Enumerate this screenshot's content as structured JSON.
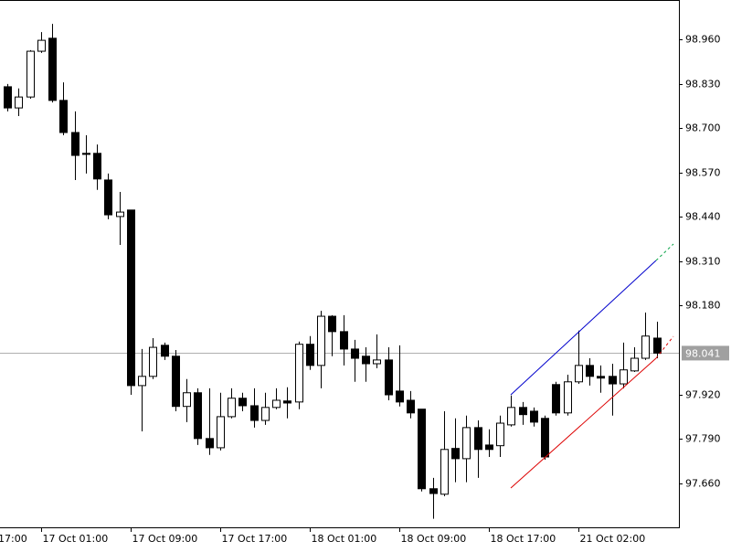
{
  "chart_data": {
    "type": "candlestick",
    "categories": [
      null,
      null,
      null,
      "17 Oct 01:00",
      null,
      null,
      null,
      null,
      null,
      null,
      null,
      "17 Oct 09:00",
      null,
      null,
      null,
      null,
      null,
      null,
      null,
      "17 Oct 17:00",
      null,
      null,
      null,
      null,
      null,
      null,
      null,
      "18 Oct 01:00",
      null,
      null,
      null,
      null,
      null,
      null,
      null,
      "18 Oct 09:00",
      null,
      null,
      null,
      null,
      null,
      null,
      null,
      "18 Oct 17:00",
      null,
      null,
      null,
      null,
      null,
      null,
      null,
      "21 Oct 02:00",
      null,
      null,
      null,
      null,
      null,
      null,
      null
    ],
    "x_label_clipped": "17:00",
    "open": [
      98.821,
      98.759,
      98.791,
      98.925,
      98.963,
      98.781,
      98.687,
      98.626,
      98.626,
      98.548,
      98.441,
      98.46,
      97.946,
      97.973,
      98.064,
      98.032,
      97.885,
      97.925,
      97.791,
      97.764,
      97.855,
      97.909,
      97.887,
      97.844,
      97.882,
      97.901,
      97.898,
      98.067,
      98.005,
      98.149,
      98.104,
      98.053,
      98.032,
      98.01,
      98.021,
      97.93,
      97.903,
      97.877,
      97.644,
      97.628,
      97.762,
      97.732,
      97.823,
      97.772,
      97.77,
      97.831,
      97.882,
      97.871,
      97.85,
      97.949,
      97.866,
      97.957,
      98.005,
      97.973,
      97.973,
      97.951,
      97.989,
      98.026,
      98.085
    ],
    "high": [
      98.829,
      98.816,
      98.928,
      98.981,
      99.005,
      98.834,
      98.749,
      98.679,
      98.652,
      98.567,
      98.513,
      98.46,
      98.053,
      98.085,
      98.072,
      98.05,
      97.965,
      97.938,
      97.938,
      97.925,
      97.938,
      97.925,
      97.938,
      97.925,
      97.938,
      97.941,
      98.075,
      98.091,
      98.165,
      98.152,
      98.152,
      98.08,
      98.058,
      98.096,
      98.058,
      98.064,
      97.93,
      97.877,
      97.676,
      97.871,
      97.85,
      97.858,
      97.844,
      97.818,
      97.858,
      97.917,
      97.898,
      97.882,
      97.858,
      97.957,
      97.978,
      98.107,
      98.026,
      98.005,
      98.01,
      98.072,
      98.058,
      98.16,
      98.133
    ],
    "low": [
      98.749,
      98.735,
      98.786,
      98.92,
      98.775,
      98.679,
      98.548,
      98.567,
      98.519,
      98.433,
      98.358,
      97.919,
      97.812,
      97.965,
      98.021,
      97.871,
      97.839,
      97.772,
      97.743,
      97.756,
      97.85,
      97.871,
      97.823,
      97.831,
      97.877,
      97.85,
      97.877,
      97.992,
      97.938,
      98.032,
      98.005,
      97.957,
      97.957,
      97.997,
      97.903,
      97.885,
      97.85,
      97.636,
      97.556,
      97.622,
      97.663,
      97.663,
      97.676,
      97.737,
      97.737,
      97.826,
      97.831,
      97.826,
      97.729,
      97.858,
      97.858,
      97.951,
      97.946,
      97.925,
      97.858,
      97.938,
      97.986,
      98.021,
      98.026
    ],
    "close": [
      98.759,
      98.791,
      98.925,
      98.957,
      98.781,
      98.687,
      98.62,
      98.623,
      98.551,
      98.446,
      98.454,
      97.946,
      97.973,
      98.058,
      98.032,
      97.885,
      97.925,
      97.791,
      97.764,
      97.855,
      97.909,
      97.887,
      97.844,
      97.882,
      97.903,
      97.895,
      98.067,
      98.005,
      98.149,
      98.104,
      98.053,
      98.026,
      98.01,
      98.021,
      97.919,
      97.898,
      97.866,
      97.644,
      97.63,
      97.759,
      97.732,
      97.823,
      97.759,
      97.759,
      97.836,
      97.882,
      97.861,
      97.839,
      97.737,
      97.866,
      97.957,
      98.005,
      97.973,
      97.968,
      97.951,
      97.992,
      98.026,
      98.091,
      98.041
    ],
    "up_color": "#ffffff",
    "down_color": "#000000",
    "ylim": [
      97.531,
      99.075
    ],
    "yticks": [
      {
        "value": 98.96,
        "label": "98.960"
      },
      {
        "value": 98.83,
        "label": "98.830"
      },
      {
        "value": 98.7,
        "label": "98.700"
      },
      {
        "value": 98.57,
        "label": "98.570"
      },
      {
        "value": 98.44,
        "label": "98.440"
      },
      {
        "value": 98.31,
        "label": "98.310"
      },
      {
        "value": 98.18,
        "label": "98.180"
      },
      {
        "value": 97.92,
        "label": "97.920"
      },
      {
        "value": 97.79,
        "label": "97.790"
      },
      {
        "value": 97.66,
        "label": "97.660"
      }
    ],
    "current_price": 98.041,
    "grid": false
  }
}
